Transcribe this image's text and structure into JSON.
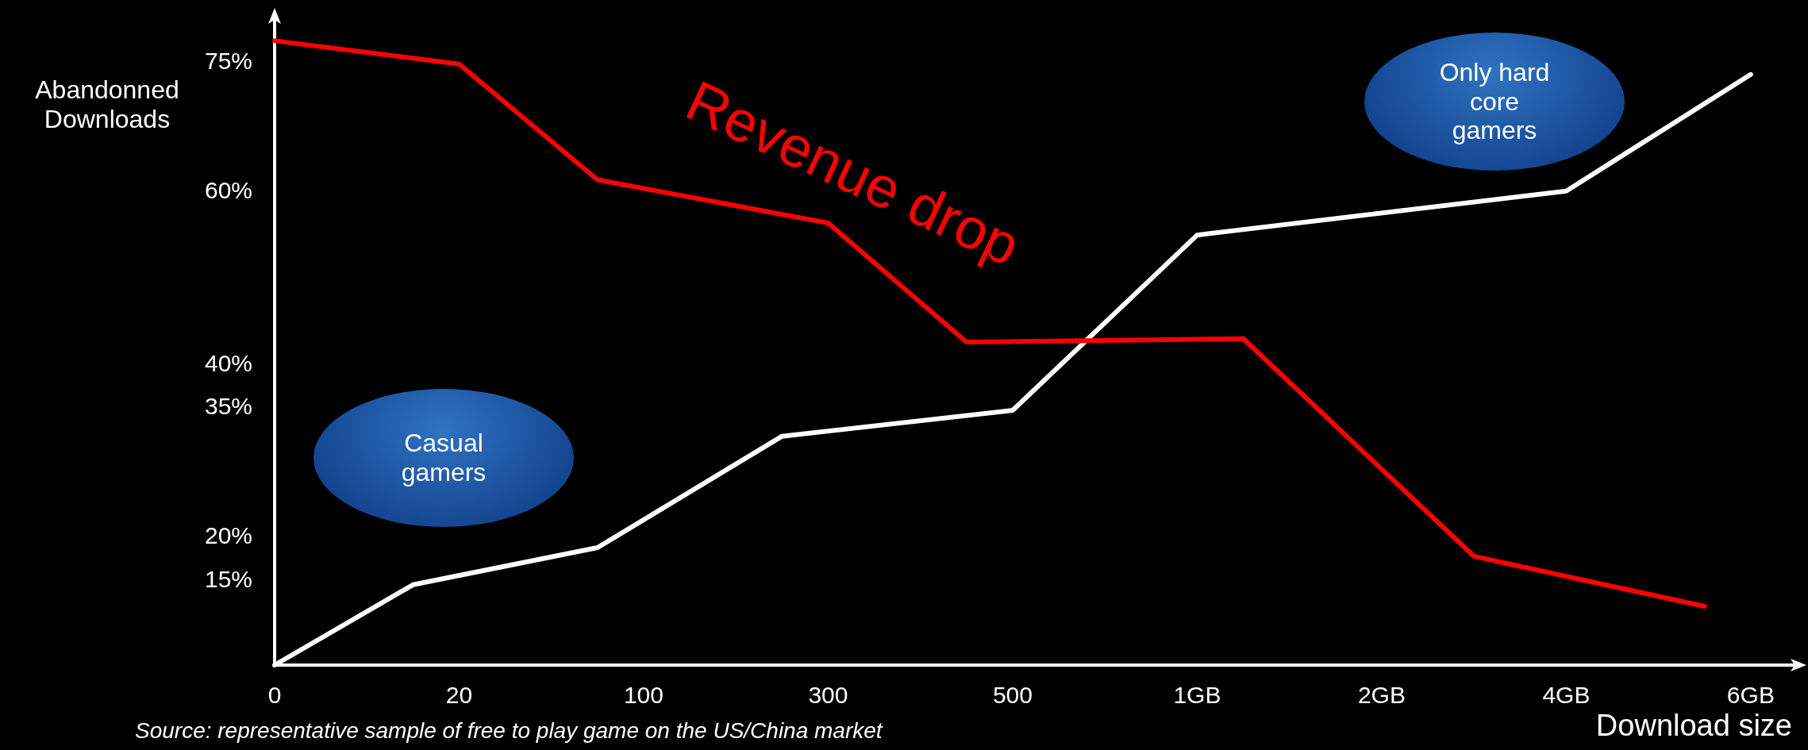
{
  "chart_data": {
    "type": "line",
    "ylabel": "Abandonned Downloads",
    "xlabel": "Download size",
    "annotations": [
      "Revenue drop",
      "Casual gamers",
      "Only hard core gamers",
      "Source: representative sample of free to play game on the US/China market"
    ],
    "categories": [
      "0",
      null,
      null,
      null,
      "20",
      null,
      null,
      null,
      "100",
      null,
      null,
      null,
      "300",
      null,
      null,
      null,
      "500",
      null,
      null,
      null,
      "1GB",
      null,
      null,
      null,
      "2GB",
      null,
      null,
      null,
      "4GB",
      null,
      null,
      null,
      "6GB"
    ],
    "ylim": [
      5,
      80
    ],
    "yticks": [
      {
        "value": 15,
        "label": "15%"
      },
      {
        "value": 20,
        "label": "20%"
      },
      {
        "value": 35,
        "label": "35%"
      },
      {
        "value": 40,
        "label": "40%"
      },
      {
        "value": 60,
        "label": "60%"
      },
      {
        "value": 75,
        "label": "75%"
      }
    ],
    "series": [
      {
        "color": "#ffffff",
        "values": [
          5,
          null,
          null,
          14.3,
          null,
          null,
          null,
          18.6,
          null,
          null,
          null,
          31.5,
          null,
          null,
          null,
          null,
          34.5,
          null,
          null,
          null,
          54.8,
          null,
          null,
          null,
          null,
          null,
          null,
          null,
          59.9,
          null,
          null,
          null,
          73.4
        ]
      },
      {
        "color": "#ff0000",
        "values": [
          77.3,
          null,
          null,
          null,
          74.6,
          null,
          null,
          61.2,
          null,
          null,
          null,
          null,
          56.2,
          null,
          null,
          42.4,
          null,
          null,
          null,
          null,
          null,
          42.8,
          null,
          null,
          null,
          null,
          17.6,
          null,
          null,
          null,
          null,
          11.8,
          null
        ]
      }
    ],
    "grid": false,
    "marker": "none",
    "line_style": "solid"
  }
}
